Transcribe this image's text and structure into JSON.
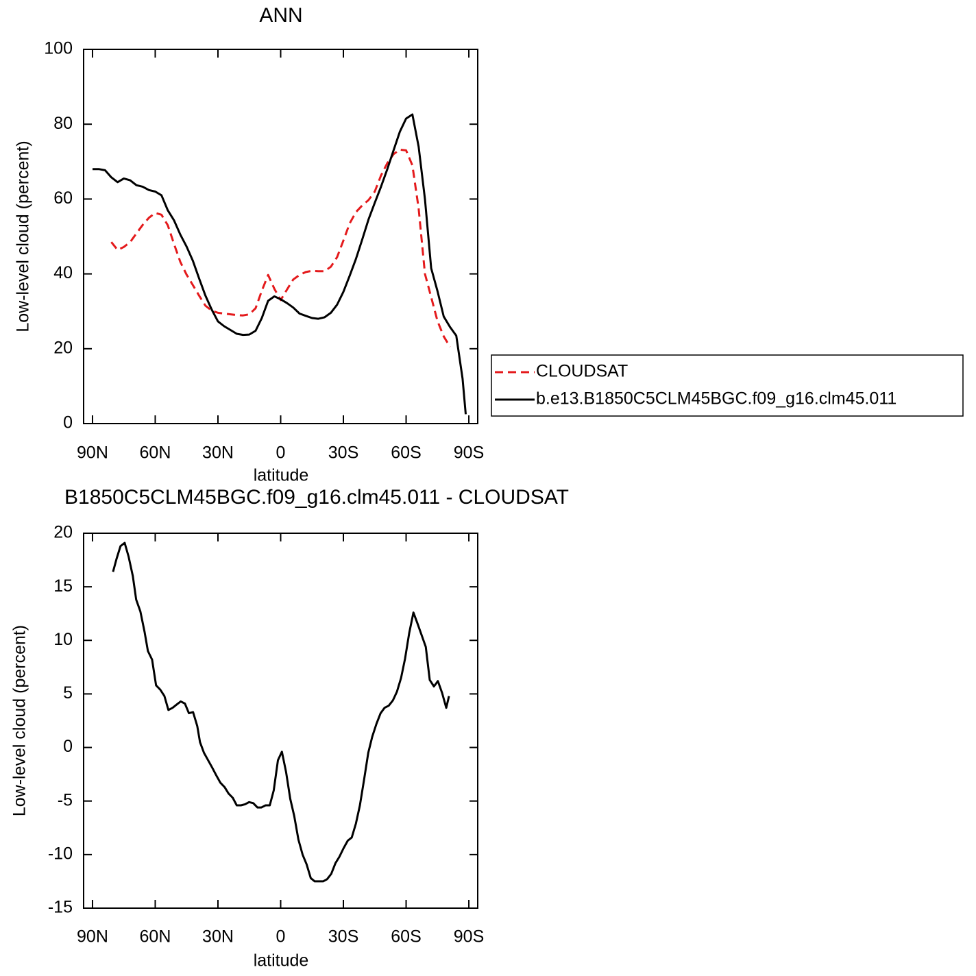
{
  "chart_data": [
    {
      "type": "line",
      "title": "ANN",
      "xlabel": "latitude",
      "ylabel": "Low-level cloud (percent)",
      "x": [
        90,
        87,
        84,
        81,
        78,
        75,
        72,
        69,
        66,
        63,
        60,
        57,
        54,
        51,
        48,
        45,
        42,
        39,
        36,
        33,
        30,
        27,
        24,
        21,
        18,
        15,
        12,
        9,
        6,
        3,
        0,
        -3,
        -6,
        -9,
        -12,
        -15,
        -18,
        -21,
        -24,
        -27,
        -30,
        -33,
        -36,
        -39,
        -42,
        -45,
        -48,
        -51,
        -54,
        -57,
        -60,
        -63,
        -66,
        -69,
        -72,
        -75,
        -78,
        -81,
        -84,
        -87,
        -88.5
      ],
      "series": [
        {
          "name": "CLOUDSAT",
          "color": "#e41a1c",
          "dash": true,
          "values": [
            null,
            null,
            null,
            48.5,
            46.4,
            47.2,
            48.5,
            50.8,
            53.1,
            55,
            56.3,
            55.8,
            53,
            48,
            43.2,
            39.8,
            37,
            34.2,
            31.5,
            30.2,
            29.6,
            29.4,
            29.2,
            29,
            28.9,
            29.2,
            30.8,
            35.5,
            39.7,
            36,
            33,
            35.8,
            38.5,
            39.7,
            40.5,
            40.8,
            40.7,
            40.7,
            41.9,
            44.5,
            48.9,
            53.5,
            56.5,
            58.3,
            59.7,
            62,
            66.3,
            69.6,
            72,
            73.2,
            73,
            69,
            57.5,
            40,
            33.8,
            27.4,
            23.3,
            20.5,
            null,
            null,
            null
          ]
        },
        {
          "name": "b.e13.B1850C5CLM45BGC.f09_g16.clm45.011",
          "color": "#000000",
          "dash": false,
          "values": [
            68,
            68,
            67.7,
            65.8,
            64.5,
            65.5,
            65,
            63.7,
            63.3,
            62.4,
            62,
            61,
            57,
            54.3,
            50.5,
            47.3,
            43.5,
            38.8,
            34.2,
            30.5,
            27.3,
            26,
            25,
            24,
            23.7,
            23.8,
            24.8,
            28.2,
            32.8,
            34,
            33.2,
            32.2,
            31,
            29.4,
            28.8,
            28.2,
            28,
            28.4,
            29.6,
            31.8,
            35.2,
            39.5,
            44,
            49.2,
            54.5,
            59,
            63.3,
            68,
            73,
            78,
            81.5,
            82.6,
            74,
            60,
            41.5,
            35.4,
            28.6,
            25.8,
            23.5,
            12,
            2.5
          ]
        }
      ],
      "xlim": [
        94.25,
        -94.25
      ],
      "xticks": [
        {
          "value": 90,
          "label": "90N"
        },
        {
          "value": 60,
          "label": "60N"
        },
        {
          "value": 30,
          "label": "30N"
        },
        0,
        {
          "value": -30,
          "label": "30S"
        },
        {
          "value": -60,
          "label": "60S"
        },
        {
          "value": -90,
          "label": "90S"
        }
      ],
      "ylim": [
        0,
        100
      ],
      "yticks": [
        0,
        20,
        40,
        60,
        80,
        100
      ],
      "legend": "outside-right"
    },
    {
      "type": "line",
      "title": "B1850C5CLM45BGC.f09_g16.clm45.011 - CLOUDSAT",
      "xlabel": "latitude",
      "ylabel": "Low-level cloud (percent)",
      "x": [
        80.2,
        78.5,
        76.6,
        74.6,
        72.7,
        70.7,
        69.1,
        67.1,
        65.1,
        63.5,
        61.5,
        59.6,
        57.6,
        55.6,
        53.7,
        51.7,
        49.8,
        47.8,
        45.8,
        43.9,
        41.9,
        39.9,
        38.6,
        36.7,
        34.7,
        32.7,
        30.8,
        28.8,
        26.8,
        24.9,
        22.9,
        21,
        19,
        17,
        15.1,
        13.1,
        11.1,
        9.2,
        7.2,
        5.2,
        3.3,
        1.3,
        -0.6,
        -2.6,
        -4.6,
        -6.5,
        -8.5,
        -10.5,
        -12.4,
        -14.4,
        -16.3,
        -18.3,
        -20.3,
        -22.2,
        -24.2,
        -26.2,
        -28.1,
        -30.1,
        -32.1,
        -34,
        -36,
        -37.9,
        -39.9,
        -41.9,
        -43.8,
        -45.8,
        -47.8,
        -49.7,
        -51.7,
        -53.7,
        -55.6,
        -57.6,
        -59.5,
        -61.5,
        -63.5,
        -65.4,
        -67.4,
        -69.4,
        -71.3,
        -73.3,
        -75.2,
        -77.2,
        -79.2,
        -80.5
      ],
      "values": [
        16.4,
        17.6,
        18.8,
        19.1,
        17.8,
        16,
        13.8,
        12.7,
        10.8,
        9,
        8.2,
        5.8,
        5.4,
        4.8,
        3.5,
        3.7,
        4,
        4.3,
        4.1,
        3.2,
        3.3,
        2,
        0.5,
        -0.5,
        -1.2,
        -1.9,
        -2.6,
        -3.3,
        -3.7,
        -4.3,
        -4.7,
        -5.4,
        -5.4,
        -5.3,
        -5.1,
        -5.2,
        -5.6,
        -5.6,
        -5.4,
        -5.4,
        -4,
        -1.2,
        -0.4,
        -2.3,
        -4.8,
        -6.4,
        -8.6,
        -10,
        -10.9,
        -12.2,
        -12.5,
        -12.5,
        -12.5,
        -12.3,
        -11.8,
        -10.8,
        -10.2,
        -9.4,
        -8.7,
        -8.4,
        -7.1,
        -5.4,
        -3,
        -0.5,
        1,
        2.2,
        3.2,
        3.7,
        3.9,
        4.4,
        5.2,
        6.5,
        8.3,
        10.7,
        12.6,
        11.6,
        10.5,
        9.4,
        6.3,
        5.7,
        6.2,
        5.1,
        3.7,
        4.8
      ],
      "color": "#000000",
      "xlim": [
        94.25,
        -94.25
      ],
      "xticks": [
        {
          "value": 90,
          "label": "90N"
        },
        {
          "value": 60,
          "label": "60N"
        },
        {
          "value": 30,
          "label": "30N"
        },
        0,
        {
          "value": -30,
          "label": "30S"
        },
        {
          "value": -60,
          "label": "60S"
        },
        {
          "value": -90,
          "label": "90S"
        }
      ],
      "ylim": [
        -15,
        20
      ],
      "yticks": [
        -15,
        -10,
        -5,
        0,
        5,
        10,
        15,
        20
      ]
    }
  ]
}
